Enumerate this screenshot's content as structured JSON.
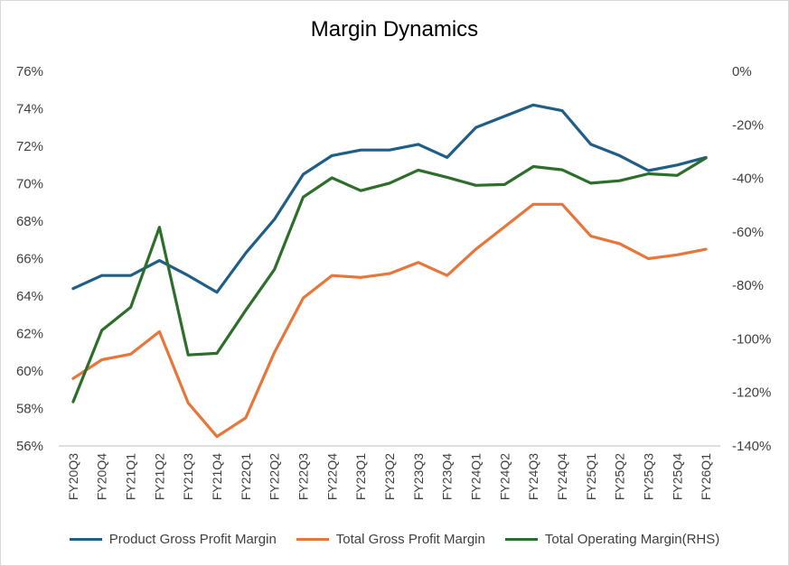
{
  "chart_data": {
    "type": "line",
    "title": "Margin Dynamics",
    "categories": [
      "FY20Q3",
      "FY20Q4",
      "FY21Q1",
      "FY21Q2",
      "FY21Q3",
      "FY21Q4",
      "FY22Q1",
      "FY22Q2",
      "FY22Q3",
      "FY22Q4",
      "FY23Q1",
      "FY23Q2",
      "FY23Q3",
      "FY23Q4",
      "FY24Q1",
      "FY24Q2",
      "FY24Q3",
      "FY24Q4",
      "FY25Q1",
      "FY25Q2",
      "FY25Q3",
      "FY25Q4",
      "FY26Q1"
    ],
    "left_axis": {
      "min": 56,
      "max": 76,
      "step": 2,
      "tick_labels": [
        "76%",
        "74%",
        "72%",
        "70%",
        "68%",
        "66%",
        "64%",
        "62%",
        "60%",
        "58%",
        "56%"
      ]
    },
    "right_axis": {
      "min": -140,
      "max": 0,
      "step": 20,
      "tick_labels": [
        "0%",
        "-20%",
        "-40%",
        "-60%",
        "-80%",
        "-100%",
        "-120%",
        "-140%"
      ]
    },
    "series": [
      {
        "name": "Product Gross Profit Margin",
        "axis": "left",
        "color": "#1f5e86",
        "values": [
          64.4,
          65.1,
          65.1,
          65.9,
          65.1,
          64.2,
          66.3,
          68.1,
          70.5,
          71.5,
          71.8,
          71.8,
          72.1,
          71.4,
          73.0,
          73.6,
          74.2,
          73.9,
          72.1,
          71.5,
          70.7,
          71.0,
          71.4
        ]
      },
      {
        "name": "Total Gross Profit Margin",
        "axis": "left",
        "color": "#e8763a",
        "values": [
          59.6,
          60.6,
          60.9,
          62.1,
          58.3,
          56.5,
          57.5,
          61.0,
          63.9,
          65.1,
          65.0,
          65.2,
          65.8,
          65.1,
          66.5,
          67.7,
          68.9,
          68.9,
          67.2,
          66.8,
          66.0,
          66.2,
          66.5
        ]
      },
      {
        "name": "Total Operating Margin(RHS)",
        "axis": "right",
        "color": "#2c6e2a",
        "values": [
          -123.5,
          -96.8,
          -88.2,
          -58.3,
          -106.0,
          -105.4,
          -89.3,
          -74.0,
          -47.0,
          -39.8,
          -44.6,
          -41.8,
          -36.9,
          -39.6,
          -42.6,
          -42.3,
          -35.6,
          -36.8,
          -41.8,
          -40.9,
          -38.3,
          -38.9,
          -32.4
        ]
      }
    ],
    "legend_position": "bottom",
    "grid": false
  }
}
